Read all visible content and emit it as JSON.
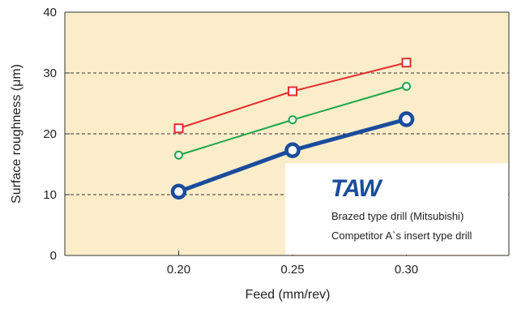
{
  "chart_data": {
    "type": "line",
    "title": "",
    "xlabel": "Feed (mm/rev)",
    "ylabel": "Surface roughness (μm)",
    "x": [
      0.2,
      0.25,
      0.3
    ],
    "x_tick_labels": [
      "0.20",
      "0.25",
      "0.30"
    ],
    "xlim": [
      0.15,
      0.345
    ],
    "ylim": [
      0,
      40
    ],
    "y_ticks": [
      0,
      10,
      20,
      30,
      40
    ],
    "y_tick_labels": [
      "0",
      "10",
      "20",
      "30",
      "40"
    ],
    "grid": "horizontal dashed at 10, 20, 30",
    "plot_background": "#fbedc9",
    "legend_placement": "bottom-right",
    "series": [
      {
        "name": "TAW",
        "values": [
          10.5,
          17.3,
          22.4
        ],
        "color": "#1a4c9c",
        "marker": "circle",
        "thick": true
      },
      {
        "name": "Brazed type drill (Mitsubishi)",
        "values": [
          16.5,
          22.3,
          27.8
        ],
        "color": "#1ea64a",
        "marker": "circle",
        "thick": false
      },
      {
        "name": "Competitor A`s insert type drill",
        "values": [
          20.9,
          27.0,
          31.7
        ],
        "color": "#e32d2d",
        "marker": "square",
        "thick": false
      }
    ]
  }
}
